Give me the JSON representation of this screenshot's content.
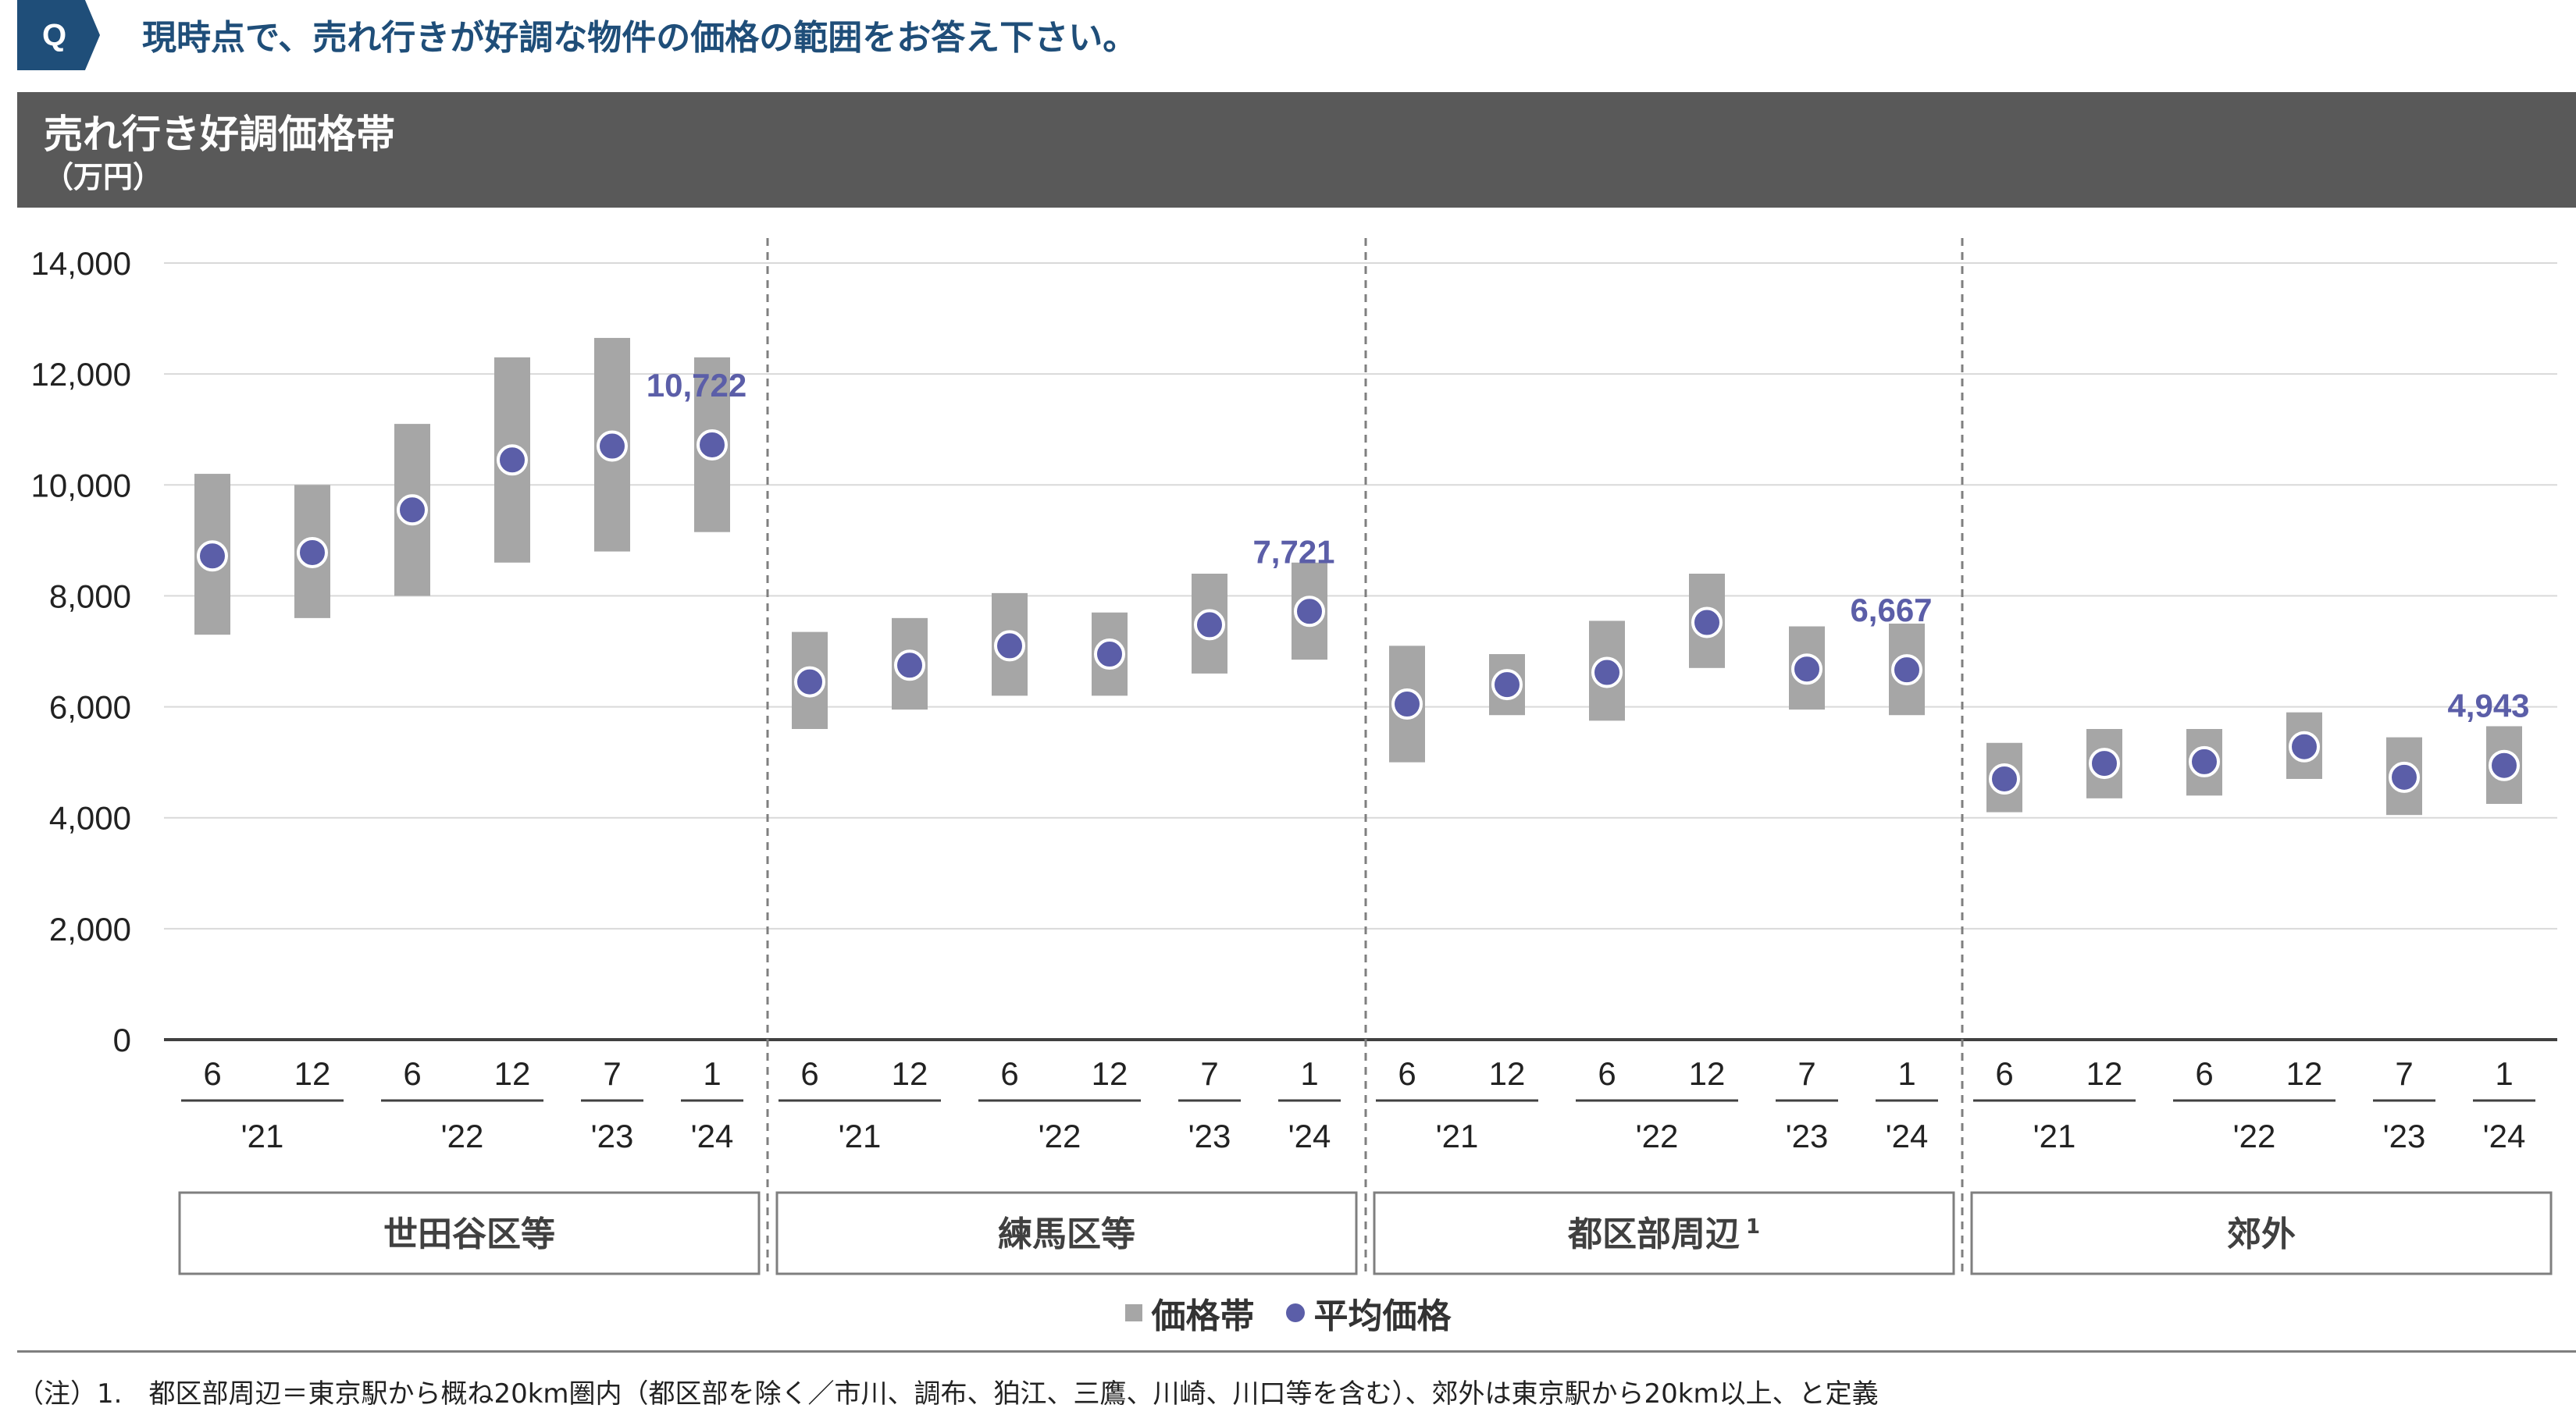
{
  "question": {
    "badge": "Q",
    "text": "現時点で、売れ行きが好調な物件の価格の範囲をお答え下さい。"
  },
  "header": {
    "title": "売れ行き好調価格帯",
    "unit": "（万円）"
  },
  "colors": {
    "band": "#a6a6a6",
    "dot": "#5b5ea8",
    "callout": "#5b5ea8",
    "header_bg": "#595959",
    "question_accent": "#1f4e79"
  },
  "chart_data": {
    "type": "range-dot",
    "ylim": [
      0,
      14000
    ],
    "yticks": [
      "0",
      "2,000",
      "4,000",
      "6,000",
      "8,000",
      "10,000",
      "12,000",
      "14,000"
    ],
    "months": [
      "6",
      "12",
      "6",
      "12",
      "7",
      "1"
    ],
    "years": [
      {
        "label": "'21",
        "span": [
          0,
          1
        ]
      },
      {
        "label": "'22",
        "span": [
          2,
          3
        ]
      },
      {
        "label": "'23",
        "span": [
          4,
          4
        ]
      },
      {
        "label": "'24",
        "span": [
          5,
          5
        ]
      }
    ],
    "grid": true,
    "legend_position": "bottom-center",
    "legend": {
      "band": "価格帯",
      "dot": "平均価格"
    },
    "groups": [
      {
        "name": "世田谷区等",
        "superscript": "",
        "callout": "10,722",
        "ranges": [
          [
            7300,
            10200
          ],
          [
            7600,
            10000
          ],
          [
            8000,
            11100
          ],
          [
            8600,
            12300
          ],
          [
            8800,
            12650
          ],
          [
            9150,
            12300
          ]
        ],
        "means": [
          8720,
          8780,
          9550,
          10450,
          10700,
          10722
        ]
      },
      {
        "name": "練馬区等",
        "superscript": "",
        "callout": "7,721",
        "ranges": [
          [
            5600,
            7350
          ],
          [
            5950,
            7600
          ],
          [
            6200,
            8050
          ],
          [
            6200,
            7700
          ],
          [
            6600,
            8400
          ],
          [
            6850,
            8600
          ]
        ],
        "means": [
          6450,
          6750,
          7100,
          6950,
          7480,
          7721
        ]
      },
      {
        "name": "都区部周辺",
        "superscript": "1",
        "callout": "6,667",
        "ranges": [
          [
            5000,
            7100
          ],
          [
            5850,
            6950
          ],
          [
            5750,
            7550
          ],
          [
            6700,
            8400
          ],
          [
            5950,
            7450
          ],
          [
            5850,
            7500
          ]
        ],
        "means": [
          6050,
          6400,
          6620,
          7520,
          6680,
          6667
        ]
      },
      {
        "name": "郊外",
        "superscript": "",
        "callout": "4,943",
        "ranges": [
          [
            4100,
            5350
          ],
          [
            4350,
            5600
          ],
          [
            4400,
            5600
          ],
          [
            4700,
            5900
          ],
          [
            4050,
            5450
          ],
          [
            4250,
            5650
          ]
        ],
        "means": [
          4700,
          4980,
          5010,
          5280,
          4730,
          4943
        ]
      }
    ]
  },
  "footnote": "（注）1.　都区部周辺＝東京駅から概ね20km圏内（都区部を除く／市川、調布、狛江、三鷹、川崎、川口等を含む）、郊外は東京駅から20km以上、と定義"
}
